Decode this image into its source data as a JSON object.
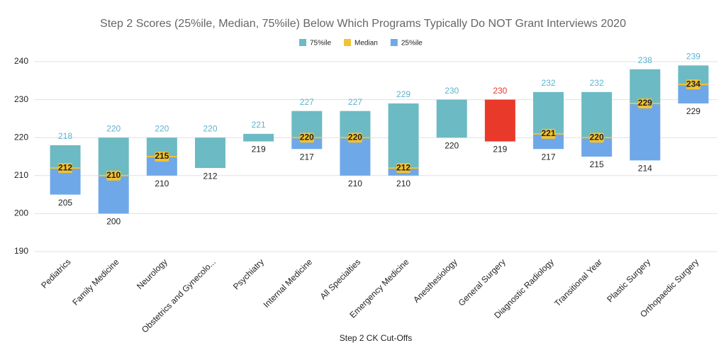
{
  "chart_data": {
    "type": "floating-bar",
    "title": "Step 2 Scores (25%ile, Median, 75%ile) Below Which Programs Typically Do NOT Grant Interviews 2020",
    "x_label": "Step 2 CK Cut-Offs",
    "categories": [
      "Pediatrics",
      "Family Medicine",
      "Neurology",
      "Obstetrics and Gynecolo...",
      "Psychiatry",
      "Internal Medicine",
      "All Specialties",
      "Emergency Medicine",
      "Anesthesiology",
      "General Surgery",
      "Diagnostic Radiology",
      "Transitional Year",
      "Plastic Surgery",
      "Orthopaedic Surgery"
    ],
    "series": [
      {
        "name": "75%ile",
        "color": "#6cbac3",
        "point_colors": [
          "#6cbac3",
          "#6cbac3",
          "#6cbac3",
          "#6cbac3",
          "#6cbac3",
          "#6cbac3",
          "#6cbac3",
          "#6cbac3",
          "#6cbac3",
          "#e8392a",
          "#6cbac3",
          "#6cbac3",
          "#6cbac3",
          "#6cbac3"
        ],
        "label_color": "#5db3cf",
        "values": [
          218,
          220,
          220,
          220,
          221,
          227,
          227,
          229,
          230,
          230,
          232,
          232,
          238,
          239
        ]
      },
      {
        "name": "Median",
        "color": "#f1c232",
        "values": [
          212,
          210,
          215,
          null,
          null,
          220,
          220,
          212,
          null,
          null,
          221,
          220,
          229,
          234
        ]
      },
      {
        "name": "25%ile",
        "color": "#6fa8e8",
        "values": [
          205,
          200,
          210,
          212,
          219,
          217,
          210,
          210,
          220,
          219,
          217,
          215,
          214,
          229
        ]
      }
    ],
    "ylim": [
      190,
      240
    ],
    "yticks": [
      190,
      200,
      210,
      220,
      230,
      240
    ],
    "grid": true,
    "legend": "top"
  }
}
